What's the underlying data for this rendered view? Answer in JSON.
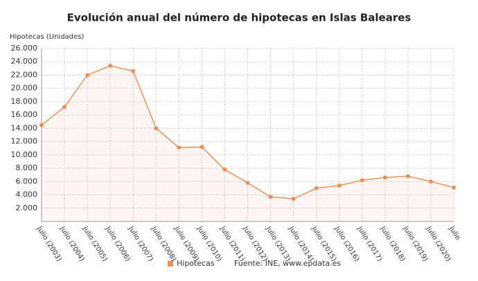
{
  "chart_data": {
    "type": "line",
    "title": "Evolución anual del número de hipotecas en Islas Baleares",
    "y_label": "Hipotecas (Unidades)",
    "categories": [
      "Julio (2003)",
      "Julio (2004)",
      "Julio (2005)",
      "Julio (2006)",
      "Julio (2007)",
      "Julio (2008)",
      "Julio (2009)",
      "Julio (2010)",
      "Julio (2011)",
      "Julio (2012)",
      "Julio (2013)",
      "Julio (2014)",
      "Julio (2015)",
      "Julio (2016)",
      "Julio (2017)",
      "Julio (2018)",
      "Julio (2019)",
      "Julio (2020)",
      "Julio"
    ],
    "series": [
      {
        "name": "Hipotecas",
        "color": "#e8915a",
        "values": [
          14500,
          17200,
          22000,
          23400,
          22600,
          14000,
          11100,
          11200,
          7800,
          5800,
          3700,
          3400,
          5000,
          5400,
          6200,
          6600,
          6800,
          6000,
          5100
        ]
      }
    ],
    "ylim": [
      0,
      26000
    ],
    "yticks": [
      {
        "value": 2000,
        "label": "2.000"
      },
      {
        "value": 4000,
        "label": "4.000"
      },
      {
        "value": 6000,
        "label": "6.000"
      },
      {
        "value": 8000,
        "label": "8.000"
      },
      {
        "value": 10000,
        "label": "10.000"
      },
      {
        "value": 12000,
        "label": "12.000"
      },
      {
        "value": 14000,
        "label": "14.000"
      },
      {
        "value": 16000,
        "label": "16.000"
      },
      {
        "value": 18000,
        "label": "18.000"
      },
      {
        "value": 20000,
        "label": "20.000"
      },
      {
        "value": 22000,
        "label": "22.000"
      },
      {
        "value": 24000,
        "label": "24.000"
      },
      {
        "value": 26000,
        "label": "26.000"
      }
    ],
    "grid": true,
    "source": "Fuente: INE, www.epdata.es"
  }
}
